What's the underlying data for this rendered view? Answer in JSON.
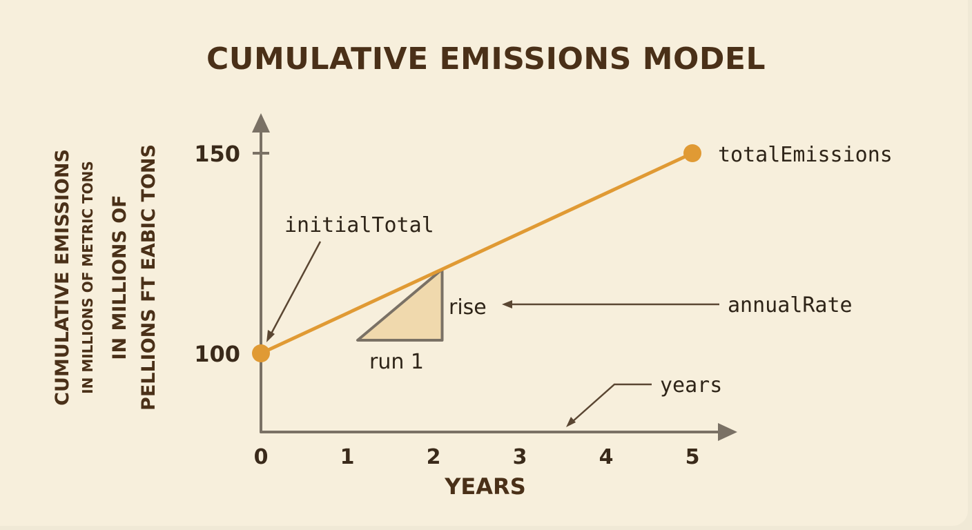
{
  "colors": {
    "background": "#f7efdc",
    "line": "#e09a34",
    "axis": "#7a7165",
    "title": "#4a3018",
    "triangle_fill": "#f0d9ad",
    "triangle_stroke": "#7a7165",
    "annotation_arrow": "#5a4632"
  },
  "chart_data": {
    "type": "line",
    "title": "CUMULATIVE EMISSIONS MODEL",
    "xlabel": "YEARS",
    "ylabel_lines": [
      "CUMULATIVE EMISSIONS",
      "IN MILLIONS OF METRIC TONS",
      "IN MILLIONS OF",
      "PELLIONS FT EABIC TONS"
    ],
    "x_ticks": [
      "0",
      "1",
      "2",
      "3",
      "4",
      "5"
    ],
    "y_ticks": [
      "100",
      "150"
    ],
    "xlim": [
      0,
      5.4
    ],
    "ylim": [
      82,
      157
    ],
    "grid": false,
    "series": [
      {
        "x": [
          0,
          5
        ],
        "y": [
          100,
          150
        ]
      }
    ],
    "slope_triangle": {
      "x_start": 1.2,
      "x_end": 2.1,
      "rise_label": "rise",
      "run_label": "run 1"
    },
    "annotations": {
      "initial_total": "initialTotal",
      "total_emissions": "totalEmissions",
      "annual_rate": "annualRate",
      "years": "years"
    }
  }
}
